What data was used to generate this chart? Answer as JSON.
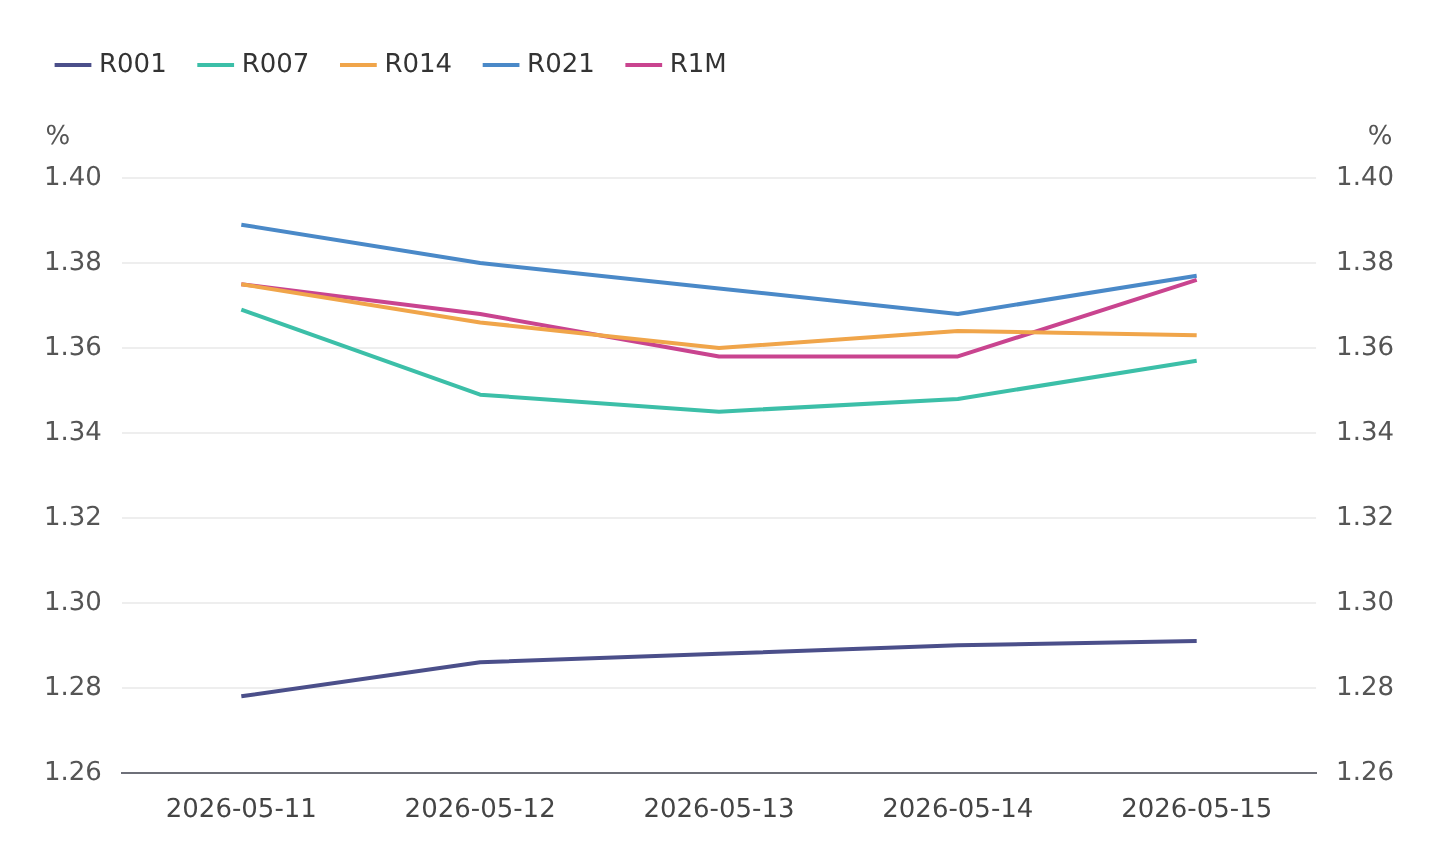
{
  "chart_data": {
    "type": "line",
    "categories": [
      "2026-05-11",
      "2026-05-12",
      "2026-05-13",
      "2026-05-14",
      "2026-05-15"
    ],
    "ylabel": "%",
    "y2label": "%",
    "ylim": [
      1.26,
      1.4
    ],
    "yticks": [
      {
        "value": 1.26,
        "label": "1.26"
      },
      {
        "value": 1.28,
        "label": "1.28"
      },
      {
        "value": 1.3,
        "label": "1.30"
      },
      {
        "value": 1.32,
        "label": "1.32"
      },
      {
        "value": 1.34,
        "label": "1.34"
      },
      {
        "value": 1.36,
        "label": "1.36"
      },
      {
        "value": 1.38,
        "label": "1.38"
      },
      {
        "value": 1.4,
        "label": "1.40"
      }
    ],
    "y2lim": [
      1.26,
      1.4
    ],
    "y2ticks": [
      {
        "value": 1.26,
        "label": "1.26"
      },
      {
        "value": 1.28,
        "label": "1.28"
      },
      {
        "value": 1.3,
        "label": "1.30"
      },
      {
        "value": 1.32,
        "label": "1.32"
      },
      {
        "value": 1.34,
        "label": "1.34"
      },
      {
        "value": 1.36,
        "label": "1.36"
      },
      {
        "value": 1.38,
        "label": "1.38"
      },
      {
        "value": 1.4,
        "label": "1.40"
      }
    ],
    "grid": "y",
    "legend": "top left",
    "marker": "none",
    "line_style": "solid",
    "series": [
      {
        "name": "R001",
        "color": "#4b4f8a",
        "values": [
          1.278,
          1.286,
          1.288,
          1.29,
          1.291
        ]
      },
      {
        "name": "R007",
        "color": "#3cbfa8",
        "values": [
          1.369,
          1.349,
          1.345,
          1.348,
          1.357
        ]
      },
      {
        "name": "R014",
        "color": "#f0a54a",
        "values": [
          1.375,
          1.366,
          1.36,
          1.364,
          1.363
        ]
      },
      {
        "name": "R021",
        "color": "#4a89c8",
        "values": [
          1.389,
          1.38,
          1.374,
          1.368,
          1.377
        ]
      },
      {
        "name": "R1M",
        "color": "#c9448f",
        "values": [
          1.375,
          1.368,
          1.358,
          1.358,
          1.376
        ]
      }
    ]
  }
}
